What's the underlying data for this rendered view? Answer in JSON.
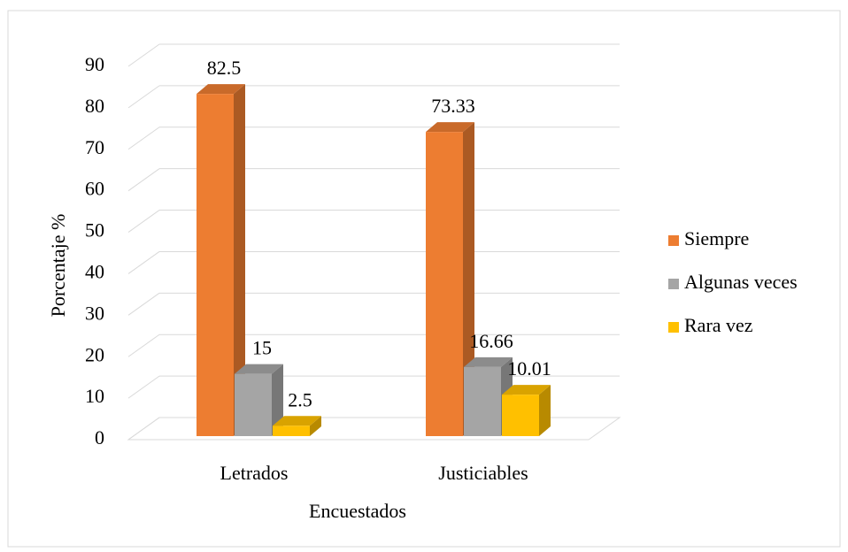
{
  "chart_data": {
    "type": "bar3d",
    "categories": [
      "Letrados",
      "Justiciables"
    ],
    "series": [
      {
        "name": "Siempre",
        "color": "#ed7d31",
        "values": [
          82.5,
          73.33
        ]
      },
      {
        "name": "Algunas veces",
        "color": "#a5a5a5",
        "values": [
          15,
          16.66
        ]
      },
      {
        "name": "Rara vez",
        "color": "#ffc000",
        "values": [
          2.5,
          10.01
        ]
      }
    ],
    "ylabel": "Porcentaje %",
    "xlabel": "Encuestados",
    "ylim": [
      0,
      90
    ],
    "yticks": [
      0,
      10,
      20,
      30,
      40,
      50,
      60,
      70,
      80,
      90
    ],
    "grid": true,
    "legend": "right"
  }
}
